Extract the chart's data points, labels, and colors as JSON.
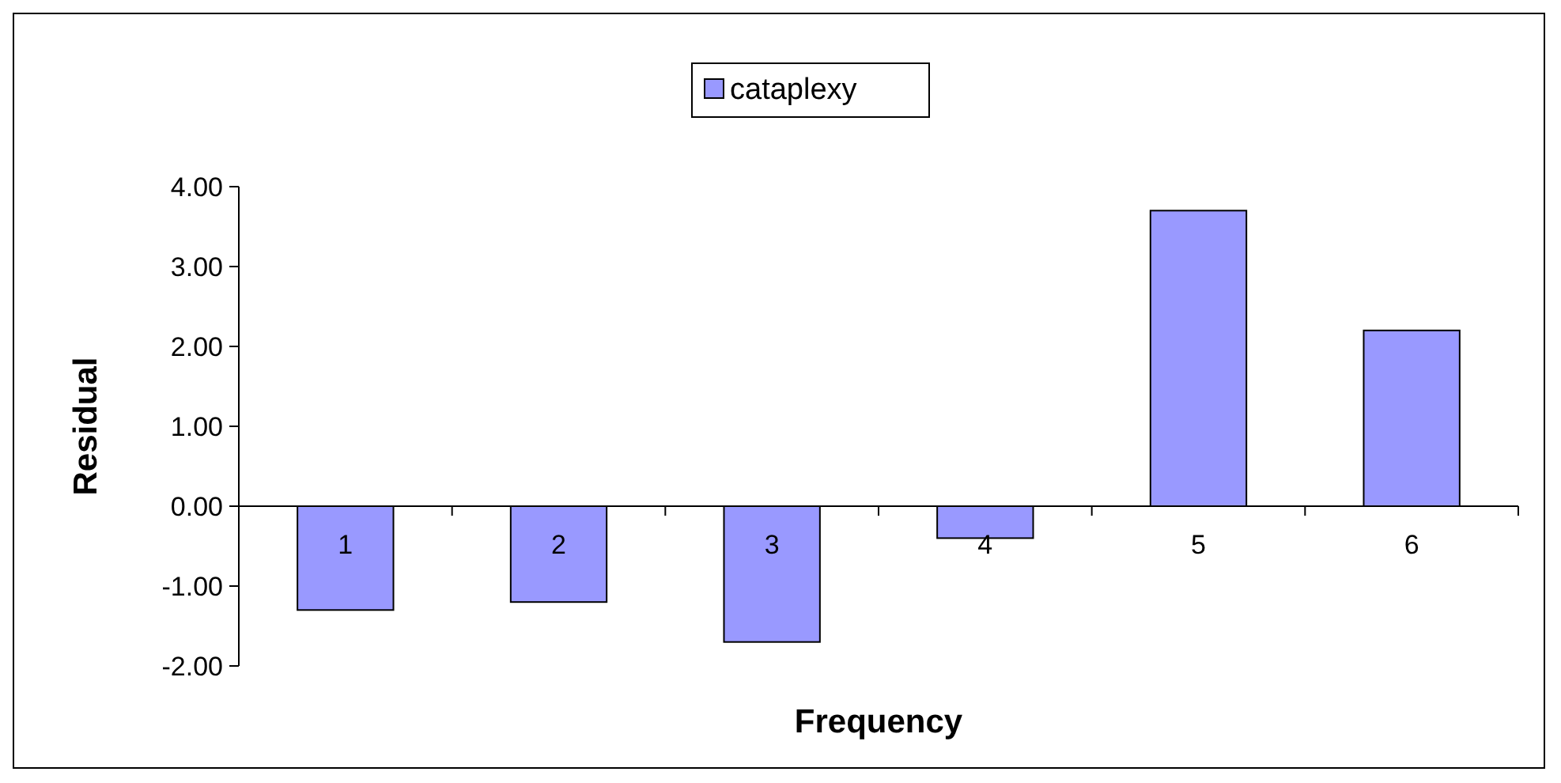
{
  "chart_data": {
    "type": "bar",
    "xlabel": "Frequency",
    "ylabel": "Residual",
    "categories": [
      "1",
      "2",
      "3",
      "4",
      "5",
      "6"
    ],
    "series": [
      {
        "name": "cataplexy",
        "color": "#9999ff",
        "values": [
          -1.3,
          -1.2,
          -1.7,
          -0.4,
          3.7,
          2.2
        ]
      }
    ],
    "ylim": [
      -2,
      4
    ],
    "yticks": [
      {
        "value": -2,
        "label": "-2.00"
      },
      {
        "value": -1,
        "label": "-1.00"
      },
      {
        "value": 0,
        "label": "0.00"
      },
      {
        "value": 1,
        "label": "1.00"
      },
      {
        "value": 2,
        "label": "2.00"
      },
      {
        "value": 3,
        "label": "3.00"
      },
      {
        "value": 4,
        "label": "4.00"
      }
    ],
    "grid": false,
    "legend": "top"
  }
}
